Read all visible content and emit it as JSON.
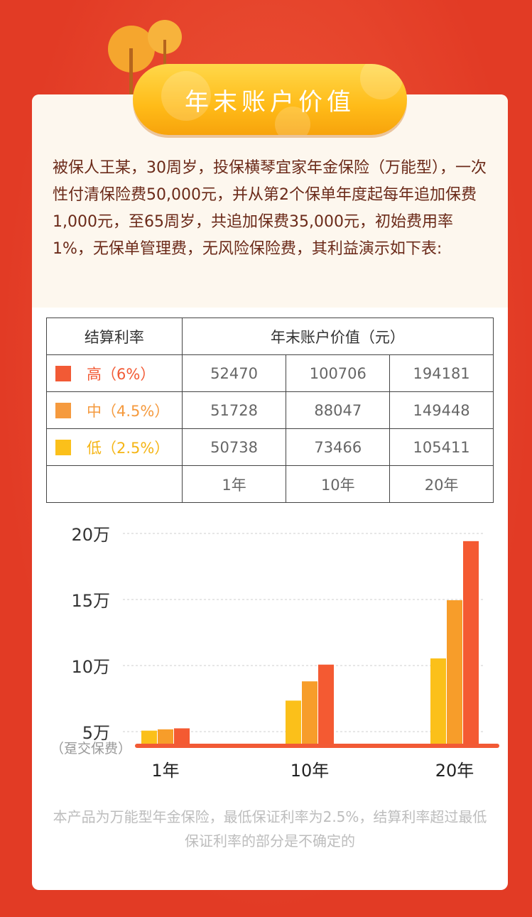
{
  "header": {
    "title": "年末账户价值"
  },
  "intro_text": "被保人王某，30周岁，投保横琴宜家年金保险（万能型），一次性付清保险费50,000元，并从第2个保单年度起每年追加保费1,000元，至65周岁，共追加保费35,000元，初始费用率1%，无保单管理费，无风险保险费，其利益演示如下表:",
  "table": {
    "col1_header": "结算利率",
    "col2_header": "年末账户价值（元）",
    "rows": [
      {
        "label": "高（6%）",
        "color": "#f25a35",
        "values": [
          "52470",
          "100706",
          "194181"
        ]
      },
      {
        "label": "中（4.5%）",
        "color": "#f59a3e",
        "values": [
          "51728",
          "88047",
          "149448"
        ]
      },
      {
        "label": "低（2.5%）",
        "color": "#fbc01a",
        "values": [
          "50738",
          "73466",
          "105411"
        ]
      }
    ],
    "years": [
      "1年",
      "10年",
      "20年"
    ]
  },
  "chart_data": {
    "type": "bar",
    "categories": [
      "1年",
      "10年",
      "20年"
    ],
    "series": [
      {
        "name": "低（2.5%）",
        "color": "#fbc01a",
        "values": [
          50738,
          73466,
          105411
        ]
      },
      {
        "name": "中（4.5%）",
        "color": "#f79d2a",
        "values": [
          51728,
          88047,
          149448
        ]
      },
      {
        "name": "高（6%）",
        "color": "#f45a32",
        "values": [
          52470,
          100706,
          194181
        ]
      }
    ],
    "yticks": [
      {
        "value": 200000,
        "label": "20万"
      },
      {
        "value": 150000,
        "label": "15万"
      },
      {
        "value": 100000,
        "label": "10万"
      },
      {
        "value": 50000,
        "label": "5万"
      }
    ],
    "baseline_label": "（趸交保费）",
    "ylim": [
      40000,
      200000
    ],
    "grid": true
  },
  "footnote": "本产品为万能型年金保险，最低保证利率为2.5%，结算利率超过最低保证利率的部分是不确定的"
}
